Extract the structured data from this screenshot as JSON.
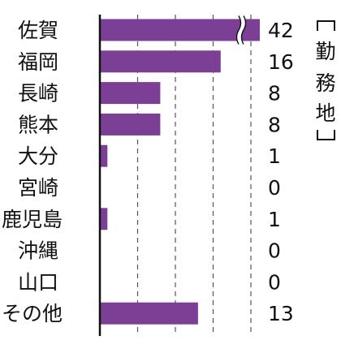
{
  "chart_data": {
    "type": "bar",
    "orientation": "horizontal",
    "categories": [
      "佐賀",
      "福岡",
      "長崎",
      "熊本",
      "大分",
      "宮崎",
      "鹿児島",
      "沖縄",
      "山口",
      "その他"
    ],
    "values": [
      42,
      16,
      8,
      8,
      1,
      0,
      1,
      0,
      0,
      13
    ],
    "value_labels": [
      "42",
      "16",
      "8",
      "8",
      "1",
      "0",
      "1",
      "0",
      "0",
      "13"
    ],
    "axis_break": {
      "category": "佐賀",
      "note": "bar truncated with break mark"
    },
    "xlim": [
      0,
      20
    ],
    "grid": "dashed vertical",
    "title": "",
    "xlabel": "",
    "ylabel": "",
    "annotation_chars": [
      "［",
      "勤",
      "務",
      "地",
      "］"
    ],
    "colors": {
      "bar": "#7b3f96",
      "axis": "#111111",
      "grid": "#555555",
      "text": "#111111"
    }
  }
}
